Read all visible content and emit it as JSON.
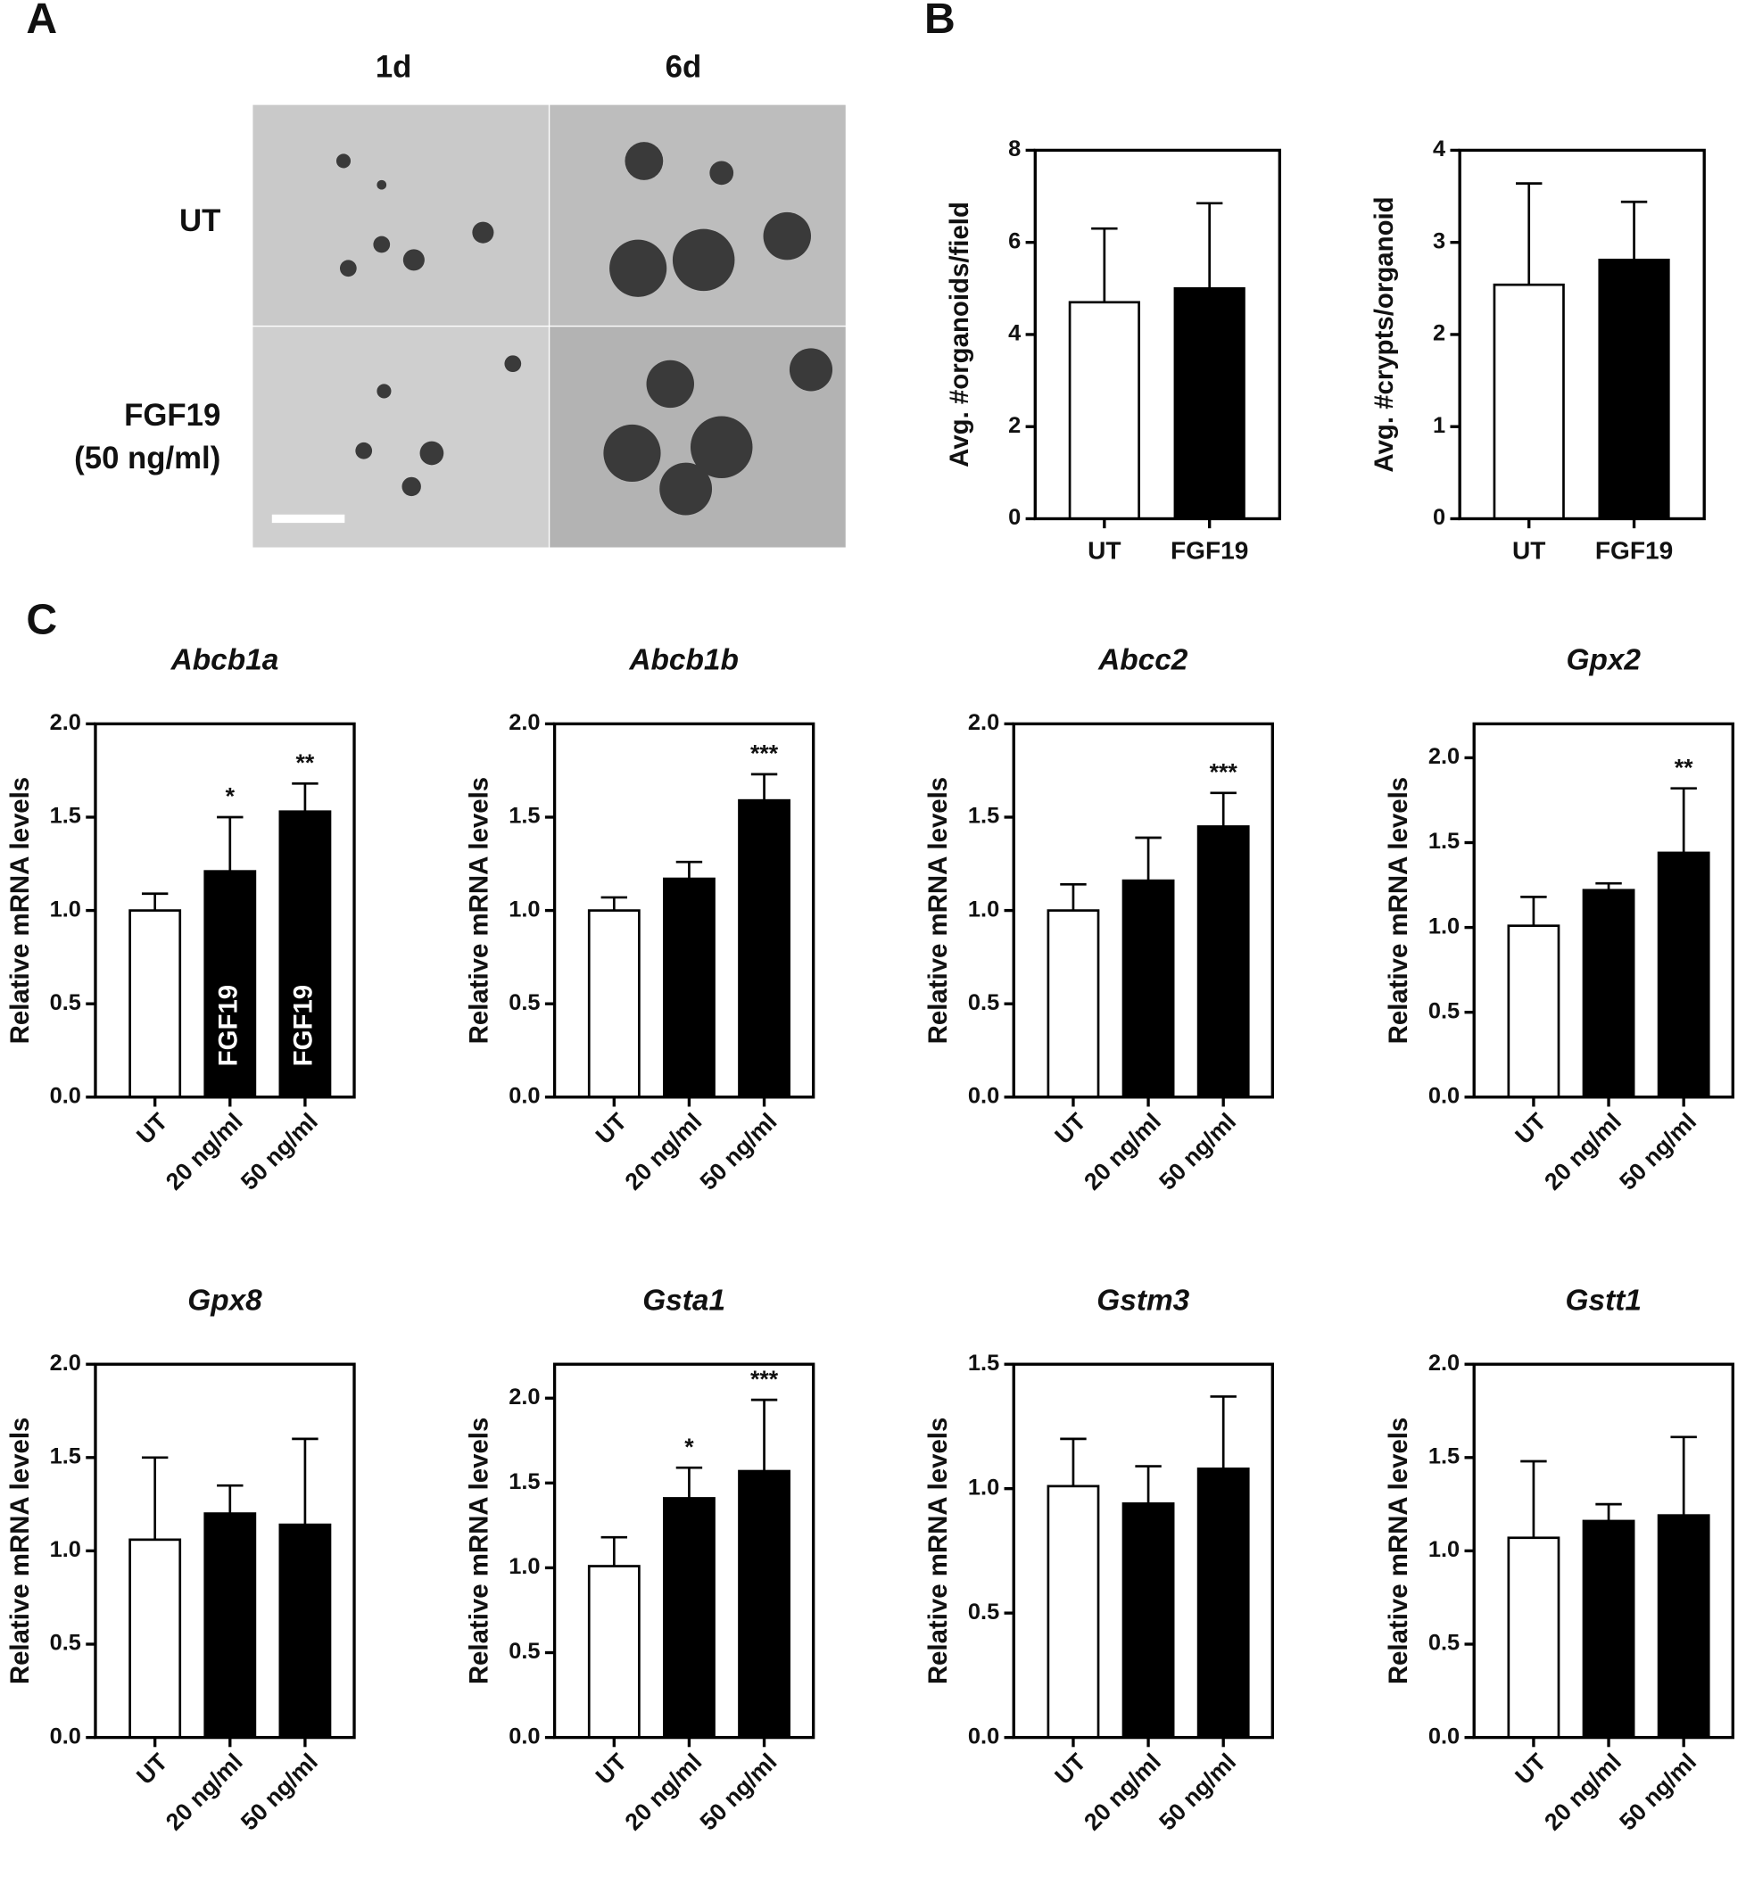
{
  "panel_labels": [
    "A",
    "B",
    "C"
  ],
  "micrographs": {
    "columns": [
      "1d",
      "6d"
    ],
    "rows": [
      {
        "lines": [
          "UT"
        ]
      },
      {
        "lines": [
          "FGF19",
          "(50 ng/ml)"
        ]
      }
    ]
  },
  "chart_data": [
    {
      "type": "bar",
      "ylabel": "Avg. #organoids/field",
      "categories": [
        "UT",
        "FGF19"
      ],
      "values": [
        4.7,
        5.0
      ],
      "errors": [
        1.6,
        1.85
      ],
      "colors": [
        "#ffffff",
        "#000000"
      ],
      "ylim": [
        0,
        8
      ],
      "yticks": [
        0,
        2,
        4,
        6,
        8
      ]
    },
    {
      "type": "bar",
      "ylabel": "Avg. #crypts/organoid",
      "categories": [
        "UT",
        "FGF19"
      ],
      "values": [
        2.54,
        2.81
      ],
      "errors": [
        1.1,
        0.63
      ],
      "colors": [
        "#ffffff",
        "#000000"
      ],
      "ylim": [
        0,
        4
      ],
      "yticks": [
        0,
        1,
        2,
        3,
        4
      ]
    },
    {
      "type": "bar",
      "title": "Abcb1a",
      "ylabel": "Relative mRNA levels",
      "categories": [
        "UT",
        "20 ng/ml",
        "50 ng/ml"
      ],
      "values": [
        1.0,
        1.21,
        1.53
      ],
      "errors": [
        0.09,
        0.29,
        0.15
      ],
      "annotations": [
        null,
        "*",
        "**"
      ],
      "bar_labels": [
        null,
        "FGF19",
        "FGF19"
      ],
      "colors": [
        "#ffffff",
        "#000000",
        "#000000"
      ],
      "ylim": [
        0,
        2.0
      ],
      "yticks": [
        {
          "value": 0,
          "label": "0.0"
        },
        0.5,
        {
          "value": 1,
          "label": "1.0"
        },
        1.5,
        {
          "value": 2,
          "label": "2.0"
        }
      ]
    },
    {
      "type": "bar",
      "title": "Abcb1b",
      "ylabel": "Relative mRNA levels",
      "categories": [
        "UT",
        "20 ng/ml",
        "50 ng/ml"
      ],
      "values": [
        1.0,
        1.17,
        1.59
      ],
      "errors": [
        0.07,
        0.09,
        0.14
      ],
      "annotations": [
        null,
        null,
        "***"
      ],
      "colors": [
        "#ffffff",
        "#000000",
        "#000000"
      ],
      "ylim": [
        0,
        2.0
      ],
      "yticks": [
        {
          "value": 0,
          "label": "0.0"
        },
        0.5,
        {
          "value": 1,
          "label": "1.0"
        },
        1.5,
        {
          "value": 2,
          "label": "2.0"
        }
      ]
    },
    {
      "type": "bar",
      "title": "Abcc2",
      "ylabel": "Relative mRNA levels",
      "categories": [
        "UT",
        "20 ng/ml",
        "50 ng/ml"
      ],
      "values": [
        1.0,
        1.16,
        1.45
      ],
      "errors": [
        0.14,
        0.23,
        0.18
      ],
      "annotations": [
        null,
        null,
        "***"
      ],
      "colors": [
        "#ffffff",
        "#000000",
        "#000000"
      ],
      "ylim": [
        0,
        2.0
      ],
      "yticks": [
        {
          "value": 0,
          "label": "0.0"
        },
        0.5,
        {
          "value": 1,
          "label": "1.0"
        },
        1.5,
        {
          "value": 2,
          "label": "2.0"
        }
      ]
    },
    {
      "type": "bar",
      "title": "Gpx2",
      "ylabel": "Relative mRNA levels",
      "categories": [
        "UT",
        "20 ng/ml",
        "50 ng/ml"
      ],
      "values": [
        1.01,
        1.22,
        1.44
      ],
      "errors": [
        0.17,
        0.04,
        0.38
      ],
      "annotations": [
        null,
        null,
        "**"
      ],
      "colors": [
        "#ffffff",
        "#000000",
        "#000000"
      ],
      "ylim": [
        0,
        2.2
      ],
      "yticks": [
        {
          "value": 0,
          "label": "0.0"
        },
        0.5,
        {
          "value": 1,
          "label": "1.0"
        },
        1.5,
        {
          "value": 2,
          "label": "2.0"
        }
      ]
    },
    {
      "type": "bar",
      "title": "Gpx8",
      "ylabel": "Relative mRNA levels",
      "categories": [
        "UT",
        "20 ng/ml",
        "50 ng/ml"
      ],
      "values": [
        1.06,
        1.2,
        1.14
      ],
      "errors": [
        0.44,
        0.15,
        0.46
      ],
      "colors": [
        "#ffffff",
        "#000000",
        "#000000"
      ],
      "ylim": [
        0,
        2.0
      ],
      "yticks": [
        {
          "value": 0,
          "label": "0.0"
        },
        0.5,
        {
          "value": 1,
          "label": "1.0"
        },
        1.5,
        {
          "value": 2,
          "label": "2.0"
        }
      ]
    },
    {
      "type": "bar",
      "title": "Gsta1",
      "ylabel": "Relative mRNA levels",
      "categories": [
        "UT",
        "20 ng/ml",
        "50 ng/ml"
      ],
      "values": [
        1.01,
        1.41,
        1.57
      ],
      "errors": [
        0.17,
        0.18,
        0.42
      ],
      "annotations": [
        null,
        "*",
        "***"
      ],
      "colors": [
        "#ffffff",
        "#000000",
        "#000000"
      ],
      "ylim": [
        0,
        2.2
      ],
      "yticks": [
        {
          "value": 0,
          "label": "0.0"
        },
        0.5,
        {
          "value": 1,
          "label": "1.0"
        },
        1.5,
        {
          "value": 2,
          "label": "2.0"
        }
      ]
    },
    {
      "type": "bar",
      "title": "Gstm3",
      "ylabel": "Relative mRNA levels",
      "categories": [
        "UT",
        "20 ng/ml",
        "50 ng/ml"
      ],
      "values": [
        1.01,
        0.94,
        1.08
      ],
      "errors": [
        0.19,
        0.15,
        0.29
      ],
      "colors": [
        "#ffffff",
        "#000000",
        "#000000"
      ],
      "ylim": [
        0,
        1.5
      ],
      "yticks": [
        {
          "value": 0,
          "label": "0.0"
        },
        0.5,
        {
          "value": 1,
          "label": "1.0"
        },
        1.5
      ]
    },
    {
      "type": "bar",
      "title": "Gstt1",
      "ylabel": "Relative mRNA levels",
      "categories": [
        "UT",
        "20 ng/ml",
        "50 ng/ml"
      ],
      "values": [
        1.07,
        1.16,
        1.19
      ],
      "errors": [
        0.41,
        0.09,
        0.42
      ],
      "colors": [
        "#ffffff",
        "#000000",
        "#000000"
      ],
      "ylim": [
        0,
        2.0
      ],
      "yticks": [
        {
          "value": 0,
          "label": "0.0"
        },
        0.5,
        {
          "value": 1,
          "label": "1.0"
        },
        1.5,
        {
          "value": 2,
          "label": "2.0"
        }
      ]
    }
  ]
}
